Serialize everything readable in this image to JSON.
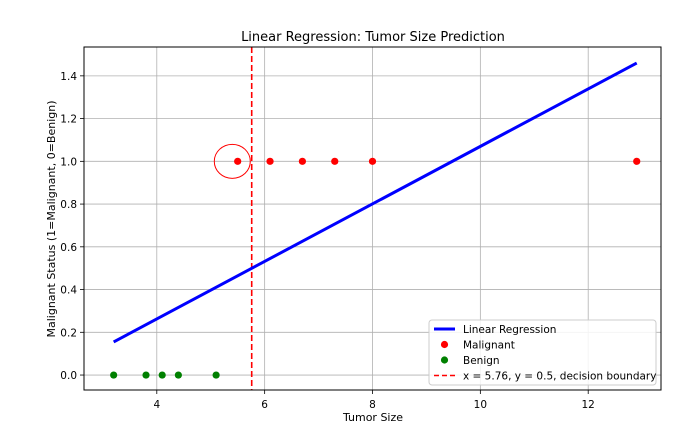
{
  "chart_data": {
    "type": "scatter",
    "title": "Linear Regression: Tumor Size Prediction",
    "xlabel": "Tumor Size",
    "ylabel": "Malignant Status (1=Malignant, 0=Benign)",
    "xlim": [
      2.65,
      13.35
    ],
    "ylim": [
      -0.07,
      1.535
    ],
    "xticks": [
      4,
      6,
      8,
      10,
      12
    ],
    "xtick_labels": [
      "4",
      "6",
      "8",
      "10",
      "12"
    ],
    "yticks": [
      0.0,
      0.2,
      0.4,
      0.6,
      0.8,
      1.0,
      1.2,
      1.4
    ],
    "ytick_labels": [
      "0.0",
      "0.2",
      "0.4",
      "0.6",
      "0.8",
      "1.0",
      "1.2",
      "1.4"
    ],
    "grid": true,
    "legend_position": "bottom-right",
    "series": [
      {
        "name": "Linear Regression",
        "kind": "line",
        "color": "#0000ff",
        "x": [
          3.2,
          12.9
        ],
        "y": [
          0.155,
          1.46
        ]
      },
      {
        "name": "Malignant",
        "kind": "scatter",
        "color": "#ff0000",
        "x": [
          5.5,
          6.1,
          6.7,
          7.3,
          8.0,
          12.9
        ],
        "y": [
          1,
          1,
          1,
          1,
          1,
          1
        ]
      },
      {
        "name": "Benign",
        "kind": "scatter",
        "color": "#008000",
        "x": [
          3.2,
          3.8,
          4.1,
          4.4,
          5.1
        ],
        "y": [
          0,
          0,
          0,
          0,
          0
        ]
      },
      {
        "name": "x = 5.76, y = 0.5, decision boundary",
        "kind": "vline",
        "color": "#ff0000",
        "x": 5.76
      }
    ],
    "annotations": [
      {
        "kind": "circle",
        "color": "#ff0000",
        "x": 5.4,
        "y": 1.0
      }
    ]
  }
}
